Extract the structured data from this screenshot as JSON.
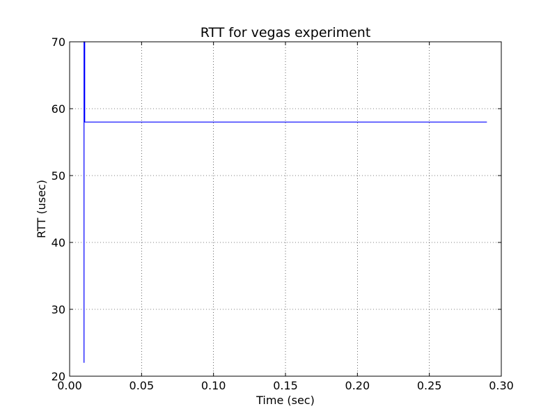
{
  "chart_data": {
    "type": "line",
    "title": "RTT for vegas experiment",
    "xlabel": "Time (sec)",
    "ylabel": "RTT (usec)",
    "xlim": [
      0.0,
      0.3
    ],
    "ylim": [
      20,
      70
    ],
    "xticks": [
      0.0,
      0.05,
      0.1,
      0.15,
      0.2,
      0.25,
      0.3
    ],
    "xtick_labels": [
      "0.00",
      "0.05",
      "0.10",
      "0.15",
      "0.20",
      "0.25",
      "0.30"
    ],
    "yticks": [
      20,
      30,
      40,
      50,
      60,
      70
    ],
    "ytick_labels": [
      "20",
      "30",
      "40",
      "50",
      "60",
      "70"
    ],
    "grid": true,
    "legend": false,
    "series": [
      {
        "color": "#0000ff",
        "points": [
          [
            0.01,
            22
          ],
          [
            0.01,
            70
          ],
          [
            0.0105,
            70
          ],
          [
            0.0105,
            58
          ],
          [
            0.29,
            58
          ]
        ]
      }
    ]
  }
}
